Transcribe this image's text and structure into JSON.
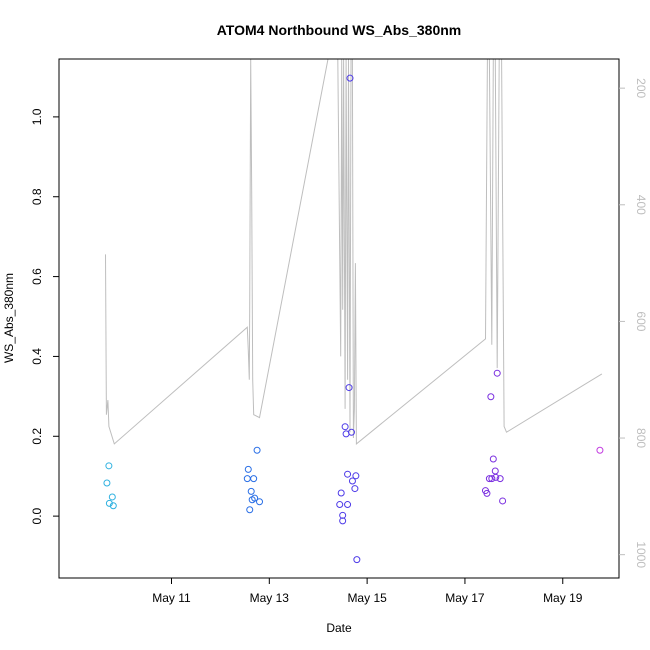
{
  "chart_data": {
    "type": "scatter",
    "title": "ATOM4 Northbound WS_Abs_380nm",
    "xlabel": "Date",
    "ylabel": "WS_Abs_380nm",
    "x_unit": "days since May 1",
    "xlim": [
      8.7,
      20.15
    ],
    "ylim": [
      -0.155,
      1.145
    ],
    "y_ticks": [
      0.0,
      0.2,
      0.4,
      0.6,
      0.8,
      1.0
    ],
    "y_tick_labels": [
      "0.0",
      "0.2",
      "0.4",
      "0.6",
      "0.8",
      "1.0"
    ],
    "x_ticks": [
      11,
      13,
      15,
      17,
      19
    ],
    "x_tick_labels": [
      "May 11",
      "May 13",
      "May 15",
      "May 17",
      "May 19"
    ],
    "y2_lim": [
      1040,
      150
    ],
    "y2_ticks": [
      200,
      400,
      600,
      800,
      1000
    ],
    "y2_tick_labels": [
      "200",
      "400",
      "600",
      "800",
      "1000"
    ],
    "grid": false,
    "legend": "none",
    "colors": {
      "axis": "#000000",
      "altitude_line": "#bebebe",
      "secondary_axis": "#bebebe"
    },
    "points": [
      {
        "x": 9.68,
        "y": 0.083,
        "color": "#2fb1e0"
      },
      {
        "x": 9.72,
        "y": 0.126,
        "color": "#2fb1e0"
      },
      {
        "x": 9.73,
        "y": 0.032,
        "color": "#2fb1e0"
      },
      {
        "x": 9.79,
        "y": 0.048,
        "color": "#2fb1e0"
      },
      {
        "x": 9.81,
        "y": 0.026,
        "color": "#2fb1e0"
      },
      {
        "x": 12.55,
        "y": 0.094,
        "color": "#2a6fe6"
      },
      {
        "x": 12.57,
        "y": 0.117,
        "color": "#2a6fe6"
      },
      {
        "x": 12.6,
        "y": 0.016,
        "color": "#2a6fe6"
      },
      {
        "x": 12.63,
        "y": 0.062,
        "color": "#2a6fe6"
      },
      {
        "x": 12.65,
        "y": 0.041,
        "color": "#2a6fe6"
      },
      {
        "x": 12.68,
        "y": 0.094,
        "color": "#2a6fe6"
      },
      {
        "x": 12.7,
        "y": 0.045,
        "color": "#2a6fe6"
      },
      {
        "x": 12.75,
        "y": 0.165,
        "color": "#2a6fe6"
      },
      {
        "x": 12.8,
        "y": 0.036,
        "color": "#2a6fe6"
      },
      {
        "x": 14.44,
        "y": 0.029,
        "color": "#4d3ae8"
      },
      {
        "x": 14.47,
        "y": 0.058,
        "color": "#4d3ae8"
      },
      {
        "x": 14.5,
        "y": -0.012,
        "color": "#4d3ae8"
      },
      {
        "x": 14.5,
        "y": 0.002,
        "color": "#4d3ae8"
      },
      {
        "x": 14.55,
        "y": 0.224,
        "color": "#4d3ae8"
      },
      {
        "x": 14.57,
        "y": 0.206,
        "color": "#4d3ae8"
      },
      {
        "x": 14.6,
        "y": 0.105,
        "color": "#4d3ae8"
      },
      {
        "x": 14.6,
        "y": 0.029,
        "color": "#4d3ae8"
      },
      {
        "x": 14.63,
        "y": 0.322,
        "color": "#4d3ae8"
      },
      {
        "x": 14.65,
        "y": 1.097,
        "color": "#4d3ae8"
      },
      {
        "x": 14.68,
        "y": 0.21,
        "color": "#4d3ae8"
      },
      {
        "x": 14.7,
        "y": 0.088,
        "color": "#4d3ae8"
      },
      {
        "x": 14.75,
        "y": 0.069,
        "color": "#4d3ae8"
      },
      {
        "x": 14.77,
        "y": 0.101,
        "color": "#4d3ae8"
      },
      {
        "x": 14.79,
        "y": -0.109,
        "color": "#4d3ae8"
      },
      {
        "x": 17.42,
        "y": 0.064,
        "color": "#7a2fe0"
      },
      {
        "x": 17.45,
        "y": 0.057,
        "color": "#7a2fe0"
      },
      {
        "x": 17.5,
        "y": 0.094,
        "color": "#7a2fe0"
      },
      {
        "x": 17.53,
        "y": 0.299,
        "color": "#7a2fe0"
      },
      {
        "x": 17.55,
        "y": 0.094,
        "color": "#7a2fe0"
      },
      {
        "x": 17.58,
        "y": 0.143,
        "color": "#7a2fe0"
      },
      {
        "x": 17.62,
        "y": 0.113,
        "color": "#7a2fe0"
      },
      {
        "x": 17.63,
        "y": 0.097,
        "color": "#7a2fe0"
      },
      {
        "x": 17.66,
        "y": 0.358,
        "color": "#7a2fe0"
      },
      {
        "x": 17.72,
        "y": 0.094,
        "color": "#7a2fe0"
      },
      {
        "x": 17.77,
        "y": 0.038,
        "color": "#7a2fe0"
      },
      {
        "x": 19.76,
        "y": 0.165,
        "color": "#c23be0"
      }
    ],
    "altitude_line": [
      {
        "x": 9.65,
        "y2": 485
      },
      {
        "x": 9.67,
        "y2": 760
      },
      {
        "x": 9.7,
        "y2": 735
      },
      {
        "x": 9.72,
        "y2": 780
      },
      {
        "x": 9.83,
        "y2": 810
      },
      {
        "x": 12.55,
        "y2": 610
      },
      {
        "x": 12.57,
        "y2": 650
      },
      {
        "x": 12.59,
        "y2": 700
      },
      {
        "x": 12.6,
        "y2": 580
      },
      {
        "x": 12.62,
        "y2": 150
      },
      {
        "x": 12.64,
        "y2": 380
      },
      {
        "x": 12.66,
        "y2": 700
      },
      {
        "x": 12.68,
        "y2": 760
      },
      {
        "x": 12.8,
        "y2": 765
      },
      {
        "x": 14.2,
        "y2": 150
      },
      {
        "x": 14.4,
        "y2": 150
      },
      {
        "x": 14.46,
        "y2": 660
      },
      {
        "x": 14.48,
        "y2": 150
      },
      {
        "x": 14.5,
        "y2": 580
      },
      {
        "x": 14.52,
        "y2": 150
      },
      {
        "x": 14.55,
        "y2": 750
      },
      {
        "x": 14.57,
        "y2": 150
      },
      {
        "x": 14.6,
        "y2": 700
      },
      {
        "x": 14.62,
        "y2": 150
      },
      {
        "x": 14.65,
        "y2": 790
      },
      {
        "x": 14.67,
        "y2": 150
      },
      {
        "x": 14.7,
        "y2": 150
      },
      {
        "x": 14.72,
        "y2": 800
      },
      {
        "x": 14.74,
        "y2": 750
      },
      {
        "x": 14.76,
        "y2": 500
      },
      {
        "x": 14.78,
        "y2": 810
      },
      {
        "x": 17.42,
        "y2": 630
      },
      {
        "x": 17.46,
        "y2": 150
      },
      {
        "x": 17.5,
        "y2": 150
      },
      {
        "x": 17.55,
        "y2": 640
      },
      {
        "x": 17.58,
        "y2": 150
      },
      {
        "x": 17.62,
        "y2": 150
      },
      {
        "x": 17.66,
        "y2": 680
      },
      {
        "x": 17.7,
        "y2": 150
      },
      {
        "x": 17.75,
        "y2": 150
      },
      {
        "x": 17.8,
        "y2": 780
      },
      {
        "x": 17.85,
        "y2": 790
      },
      {
        "x": 19.8,
        "y2": 690
      }
    ]
  }
}
